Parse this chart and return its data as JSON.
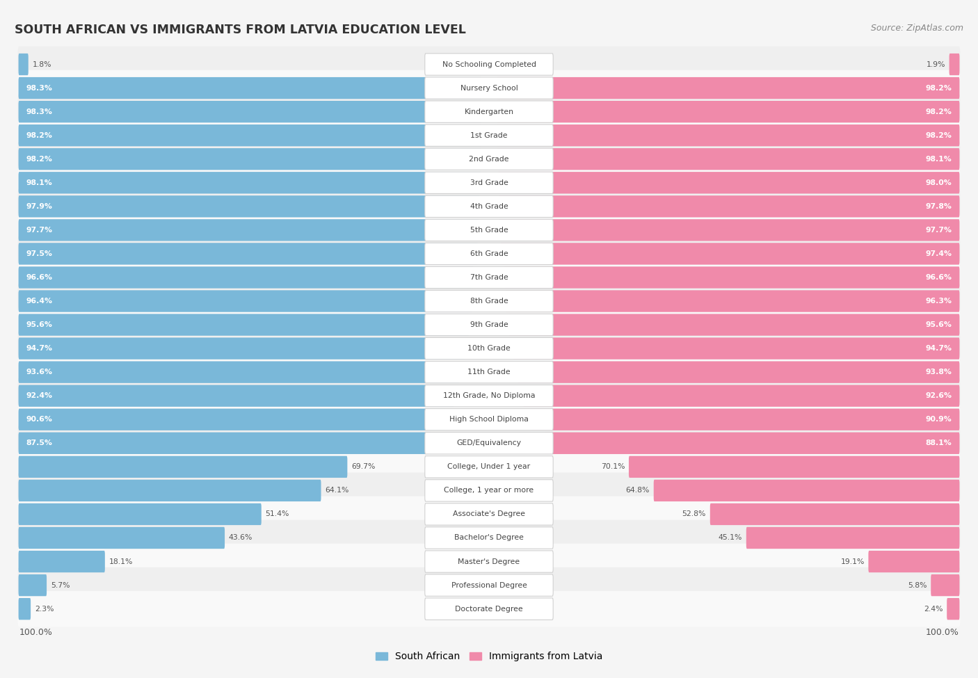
{
  "title": "SOUTH AFRICAN VS IMMIGRANTS FROM LATVIA EDUCATION LEVEL",
  "source": "Source: ZipAtlas.com",
  "categories": [
    "No Schooling Completed",
    "Nursery School",
    "Kindergarten",
    "1st Grade",
    "2nd Grade",
    "3rd Grade",
    "4th Grade",
    "5th Grade",
    "6th Grade",
    "7th Grade",
    "8th Grade",
    "9th Grade",
    "10th Grade",
    "11th Grade",
    "12th Grade, No Diploma",
    "High School Diploma",
    "GED/Equivalency",
    "College, Under 1 year",
    "College, 1 year or more",
    "Associate's Degree",
    "Bachelor's Degree",
    "Master's Degree",
    "Professional Degree",
    "Doctorate Degree"
  ],
  "south_african": [
    1.8,
    98.3,
    98.3,
    98.2,
    98.2,
    98.1,
    97.9,
    97.7,
    97.5,
    96.6,
    96.4,
    95.6,
    94.7,
    93.6,
    92.4,
    90.6,
    87.5,
    69.7,
    64.1,
    51.4,
    43.6,
    18.1,
    5.7,
    2.3
  ],
  "latvia": [
    1.9,
    98.2,
    98.2,
    98.2,
    98.1,
    98.0,
    97.8,
    97.7,
    97.4,
    96.6,
    96.3,
    95.6,
    94.7,
    93.8,
    92.6,
    90.9,
    88.1,
    70.1,
    64.8,
    52.8,
    45.1,
    19.1,
    5.8,
    2.4
  ],
  "sa_color": "#7ab8d9",
  "latvia_color": "#f08aaa",
  "row_color_odd": "#efefef",
  "row_color_even": "#f9f9f9",
  "background_color": "#f5f5f5",
  "legend_sa": "South African",
  "legend_latvia": "Immigrants from Latvia"
}
